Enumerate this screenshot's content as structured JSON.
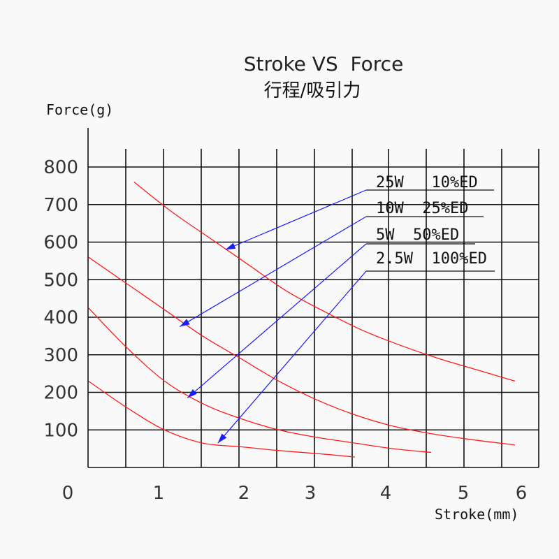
{
  "chart_data": {
    "type": "line",
    "title": "Stroke VS  Force",
    "subtitle": "行程/吸引力",
    "xlabel": "Stroke(mm)",
    "ylabel": "Force(g)",
    "grid": true,
    "xlim": [
      0,
      6.1
    ],
    "ylim": [
      0,
      800
    ],
    "x_ticks": [
      {
        "label": "0",
        "value": 0
      },
      {
        "label": "1",
        "value": 1
      },
      {
        "label": "2",
        "value": 2
      },
      {
        "label": "3",
        "value": 3
      },
      {
        "label": "4",
        "value": 4
      },
      {
        "label": "5",
        "value": 5
      },
      {
        "label": "6",
        "value": 6
      }
    ],
    "y_ticks": [
      {
        "label": "100",
        "value": 100
      },
      {
        "label": "200",
        "value": 200
      },
      {
        "label": "300",
        "value": 300
      },
      {
        "label": "400",
        "value": 400
      },
      {
        "label": "500",
        "value": 500
      },
      {
        "label": "600",
        "value": 600
      },
      {
        "label": "700",
        "value": 700
      },
      {
        "label": "800",
        "value": 800
      }
    ],
    "series": [
      {
        "name": "25W   10%ED",
        "color": "#ff1a1a",
        "points": [
          [
            1.1,
            760
          ],
          [
            1.6,
            680
          ],
          [
            2.1,
            610
          ],
          [
            2.6,
            540
          ],
          [
            3.1,
            470
          ],
          [
            3.6,
            415
          ],
          [
            4.1,
            365
          ],
          [
            4.6,
            325
          ],
          [
            5.1,
            290
          ],
          [
            5.6,
            260
          ],
          [
            6.1,
            230
          ]
        ],
        "pointer_to": [
          2.3,
          580
        ]
      },
      {
        "name": "10W  25%ED",
        "color": "#ff1a1a",
        "points": [
          [
            0.5,
            560
          ],
          [
            1.0,
            490
          ],
          [
            1.5,
            420
          ],
          [
            2.0,
            350
          ],
          [
            2.5,
            290
          ],
          [
            3.0,
            230
          ],
          [
            3.5,
            180
          ],
          [
            4.0,
            140
          ],
          [
            4.5,
            110
          ],
          [
            5.0,
            90
          ],
          [
            5.5,
            75
          ],
          [
            6.1,
            60
          ]
        ],
        "pointer_to": [
          1.7,
          375
        ]
      },
      {
        "name": "5W  50%ED",
        "color": "#ff1a1a",
        "points": [
          [
            0.5,
            425
          ],
          [
            1.0,
            320
          ],
          [
            1.5,
            230
          ],
          [
            2.0,
            170
          ],
          [
            2.5,
            130
          ],
          [
            3.0,
            100
          ],
          [
            3.5,
            80
          ],
          [
            4.0,
            65
          ],
          [
            4.5,
            50
          ],
          [
            5.0,
            40
          ]
        ],
        "pointer_to": [
          1.8,
          185
        ]
      },
      {
        "name": "2.5W  100%ED",
        "color": "#ff1a1a",
        "points": [
          [
            0.5,
            230
          ],
          [
            1.0,
            160
          ],
          [
            1.5,
            100
          ],
          [
            2.0,
            65
          ],
          [
            2.5,
            55
          ],
          [
            3.0,
            45
          ],
          [
            3.5,
            37
          ],
          [
            4.0,
            28
          ]
        ],
        "pointer_to": [
          2.2,
          65
        ]
      }
    ]
  },
  "colors": {
    "curve": "#ff1a1a",
    "pointer": "#1a1aff",
    "grid": "#111111"
  }
}
